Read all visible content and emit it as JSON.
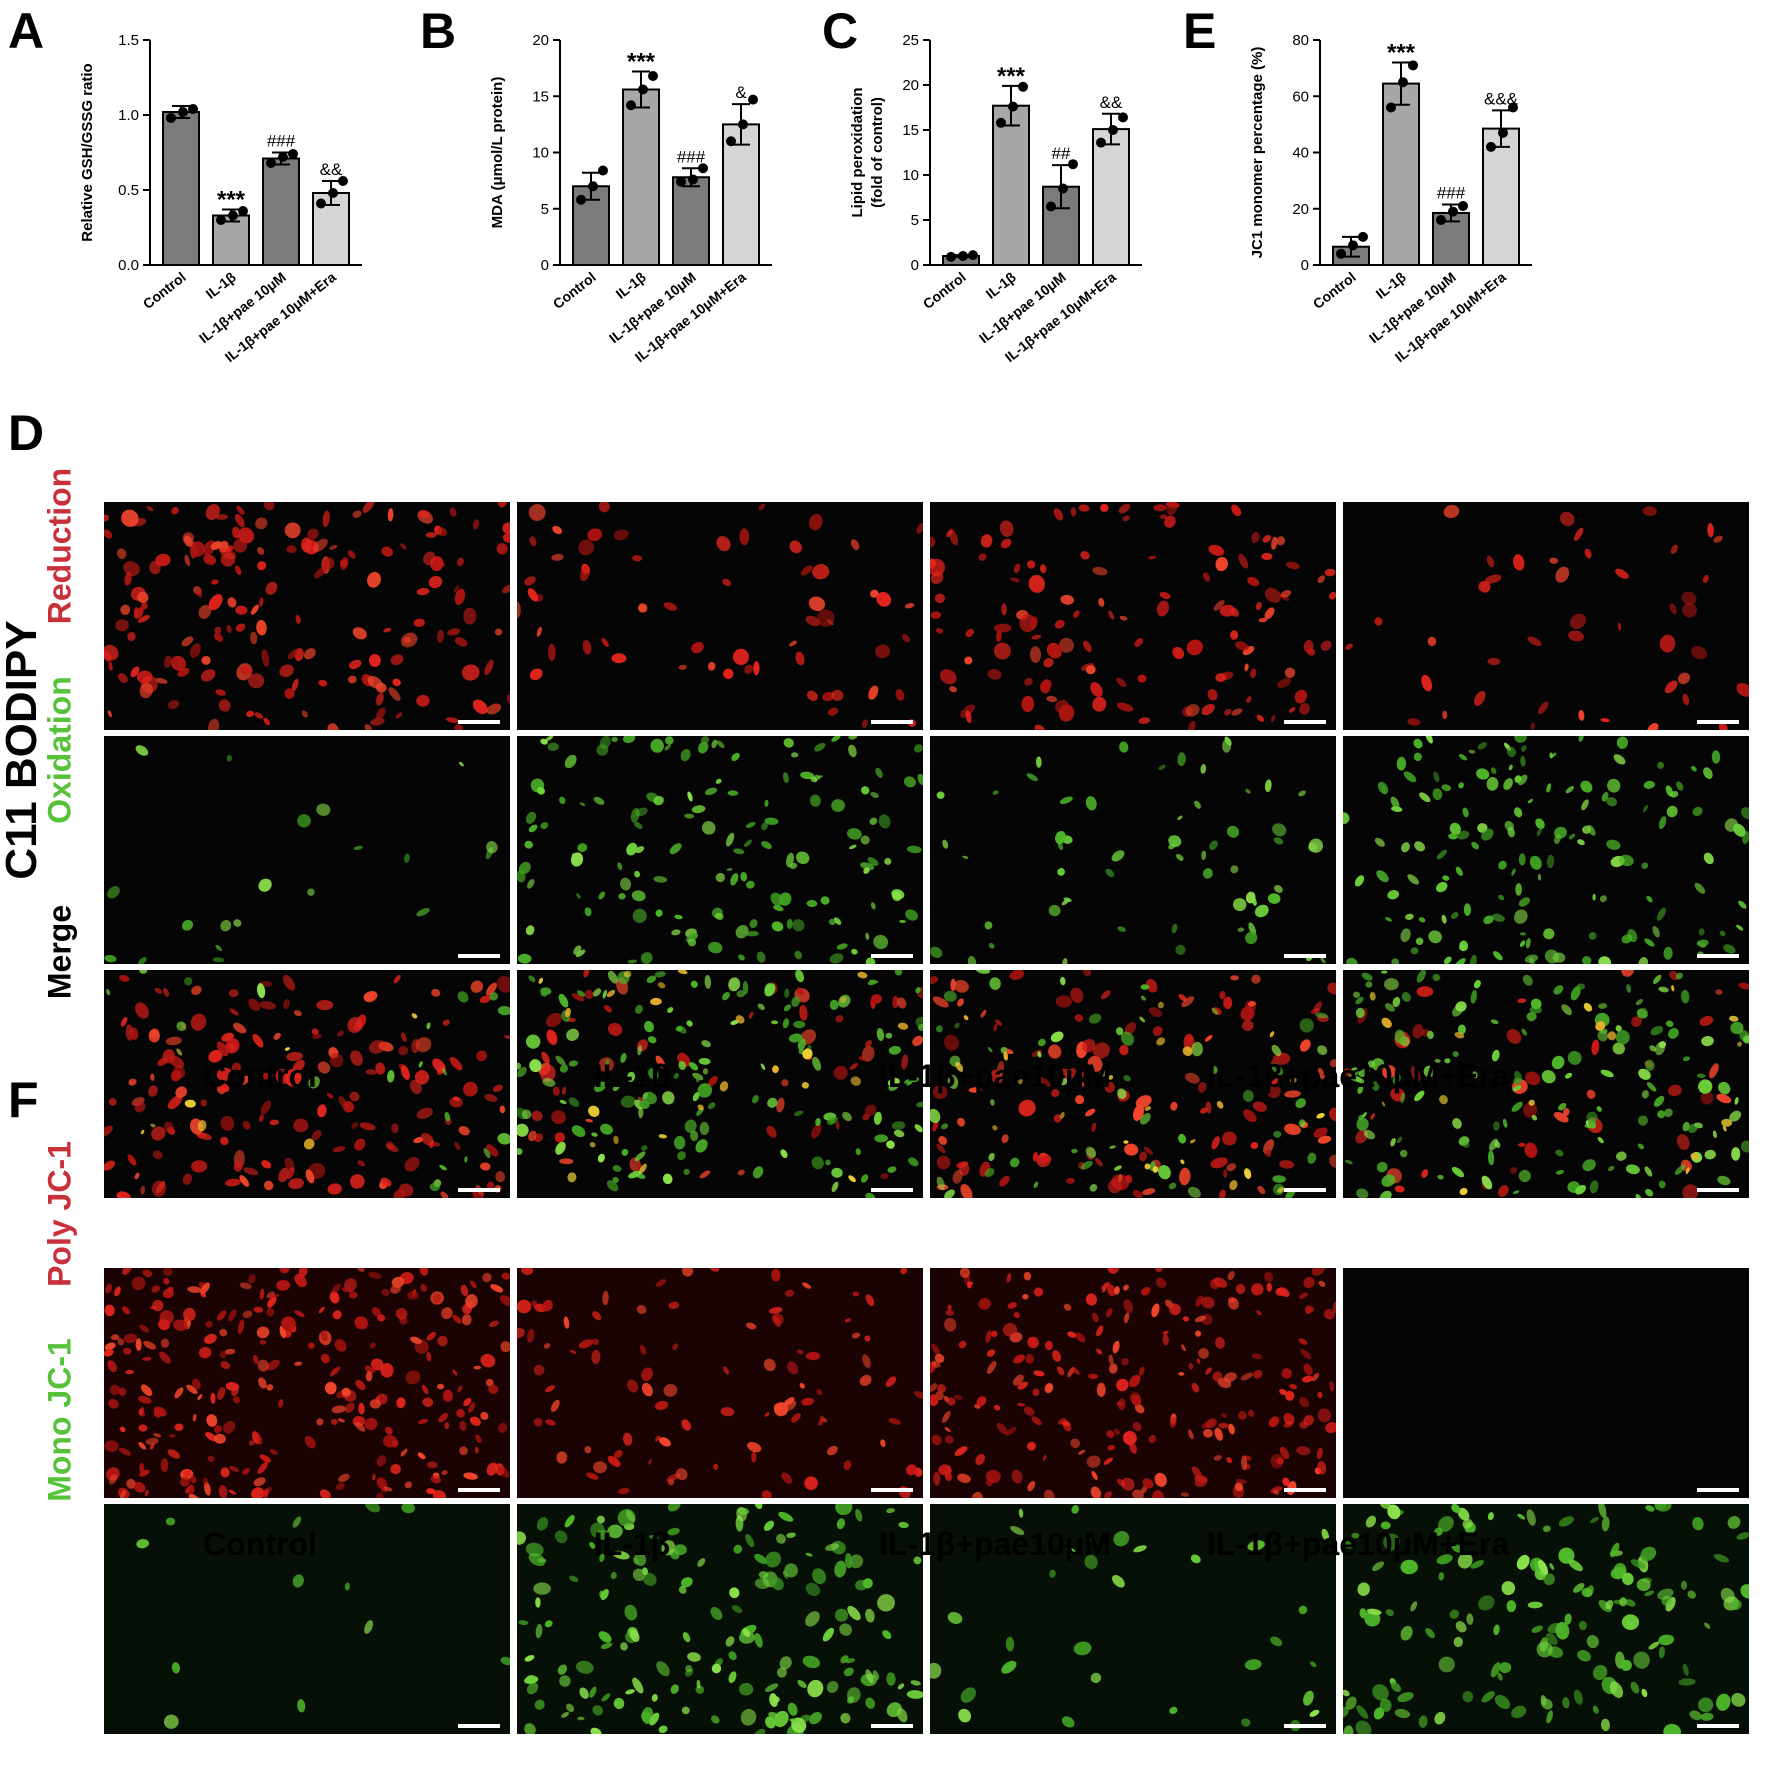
{
  "panels": {
    "a": "A",
    "b": "B",
    "c": "C",
    "e": "E",
    "d": "D",
    "f": "F"
  },
  "charts": [
    {
      "type": "bar",
      "title": "",
      "ylabel": "Relative GSH/GSSG ratio",
      "ylabel_lines": [
        "Relative GSH/GSSG ratio"
      ],
      "categories": [
        "Control",
        "IL-1β",
        "IL-1β+pae 10μM",
        "IL-1β+pae 10μM+Era"
      ],
      "values": [
        1.02,
        0.33,
        0.71,
        0.48
      ],
      "errors": [
        0.04,
        0.04,
        0.04,
        0.08
      ],
      "points": [
        [
          0.98,
          1.02,
          1.04
        ],
        [
          0.3,
          0.33,
          0.36
        ],
        [
          0.68,
          0.72,
          0.74
        ],
        [
          0.41,
          0.48,
          0.56
        ]
      ],
      "ylim": [
        0,
        1.5
      ],
      "yticks": [
        0.0,
        0.5,
        1.0,
        1.5
      ],
      "tick_decimals": 1,
      "annotations": [
        "",
        "***",
        "###",
        "&&"
      ],
      "bar_colors": [
        "#7b7b7b",
        "#a7a7aa",
        "#7b7b7b",
        "#d5d5d6"
      ]
    },
    {
      "type": "bar",
      "title": "",
      "ylabel": "MDA (μmol/L protein)",
      "ylabel_lines": [
        "MDA (μmol/L protein)"
      ],
      "categories": [
        "Control",
        "IL-1β",
        "IL-1β+pae 10μM",
        "IL-1β+pae 10μM+Era"
      ],
      "values": [
        7.0,
        15.6,
        7.8,
        12.5
      ],
      "errors": [
        1.2,
        1.6,
        0.8,
        1.8
      ],
      "points": [
        [
          5.8,
          7.0,
          8.4
        ],
        [
          14.2,
          15.6,
          16.8
        ],
        [
          7.4,
          7.6,
          8.6
        ],
        [
          11.0,
          12.5,
          14.7
        ]
      ],
      "ylim": [
        0,
        20
      ],
      "yticks": [
        0,
        5,
        10,
        15,
        20
      ],
      "tick_decimals": 0,
      "annotations": [
        "",
        "***",
        "###",
        "&"
      ],
      "bar_colors": [
        "#7b7b7b",
        "#a7a7aa",
        "#7b7b7b",
        "#d5d5d6"
      ]
    },
    {
      "type": "bar",
      "title": "",
      "ylabel": "Lipid peroxidation (fold of control)",
      "ylabel_lines": [
        "Lipid peroxidation",
        "(fold of control)"
      ],
      "categories": [
        "Control",
        "IL-1β",
        "IL-1β+pae 10μM",
        "IL-1β+pae 10μM+Era"
      ],
      "values": [
        1.0,
        17.7,
        8.7,
        15.1
      ],
      "errors": [
        0.1,
        2.2,
        2.4,
        1.7
      ],
      "points": [
        [
          0.9,
          1.0,
          1.1
        ],
        [
          15.8,
          17.6,
          19.8
        ],
        [
          6.5,
          8.5,
          11.2
        ],
        [
          13.6,
          15.0,
          16.4
        ]
      ],
      "ylim": [
        0,
        25
      ],
      "yticks": [
        0,
        5,
        10,
        15,
        20,
        25
      ],
      "tick_decimals": 0,
      "annotations": [
        "",
        "***",
        "##",
        "&&"
      ],
      "bar_colors": [
        "#7b7b7b",
        "#a7a7aa",
        "#7b7b7b",
        "#d5d5d6"
      ]
    },
    {
      "type": "bar",
      "title": "",
      "ylabel": "JC1 monomer percentage (%)",
      "ylabel_lines": [
        "JC1 monomer percentage (%)"
      ],
      "categories": [
        "Control",
        "IL-1β",
        "IL-1β+pae 10μM",
        "IL-1β+pae 10μM+Era"
      ],
      "values": [
        6.5,
        64.5,
        18.5,
        48.5
      ],
      "errors": [
        3.5,
        7.5,
        3.0,
        6.5
      ],
      "points": [
        [
          4.0,
          7.0,
          10.0
        ],
        [
          56.0,
          65.0,
          71.0
        ],
        [
          16.0,
          19.0,
          21.0
        ],
        [
          42.0,
          47.0,
          56.0
        ]
      ],
      "ylim": [
        0,
        80
      ],
      "yticks": [
        0,
        20,
        40,
        60,
        80
      ],
      "tick_decimals": 0,
      "annotations": [
        "",
        "***",
        "###",
        "&&&"
      ],
      "bar_colors": [
        "#7b7b7b",
        "#a7a7aa",
        "#7b7b7b",
        "#d5d5d6"
      ]
    }
  ],
  "bodipy": {
    "title": "C11 BODIPY",
    "rows": [
      {
        "label": "Reduction",
        "color": "#c8303a",
        "kind": "reduction"
      },
      {
        "label": "Oxidation",
        "color": "#55c23a",
        "kind": "oxidation"
      },
      {
        "label": "Merge",
        "color": "#000000",
        "kind": "merge"
      }
    ],
    "columns": [
      "Control",
      "IL-1β",
      "IL-1β+pae10μM",
      "IL-1β+pae10μM+Era"
    ],
    "red_density": [
      1.0,
      0.35,
      0.75,
      0.25
    ],
    "green_density": [
      0.12,
      0.85,
      0.35,
      0.9
    ]
  },
  "jc1": {
    "rows": [
      {
        "label": "Poly JC-1",
        "color": "#c8303a",
        "kind": "poly"
      },
      {
        "label": "Mono JC-1",
        "color": "#55c23a",
        "kind": "mono"
      }
    ],
    "columns": [
      "Control",
      "IL-1β",
      "IL-1β+pae10μM",
      "IL-1β+pae10μM+Era"
    ],
    "red_density": [
      1.0,
      0.35,
      0.85,
      0.0
    ],
    "green_density": [
      0.06,
      0.85,
      0.15,
      0.75
    ]
  }
}
